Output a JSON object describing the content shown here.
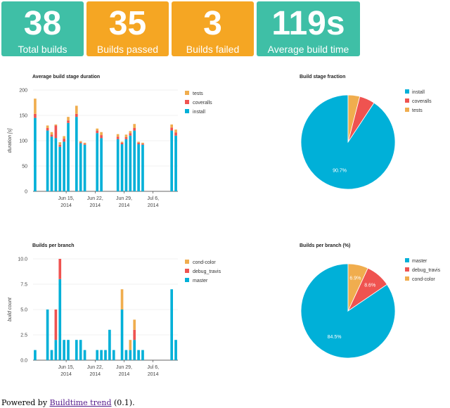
{
  "tiles": [
    {
      "value": "38",
      "label": "Total builds",
      "color": "#3fbfa6"
    },
    {
      "value": "35",
      "label": "Builds passed",
      "color": "#f5a623"
    },
    {
      "value": "3",
      "label": "Builds failed",
      "color": "#f5a623"
    },
    {
      "value": "119s",
      "label": "Average build time",
      "color": "#3fbfa6"
    }
  ],
  "footer": {
    "prefix": "Powered by ",
    "link_text": "Buildtime trend",
    "suffix": " (0.1)."
  },
  "chart_data": [
    {
      "id": "stage-duration",
      "type": "bar",
      "title": "Average build stage duration",
      "ylabel": "duration [s]",
      "xlabel": "",
      "ylim": [
        0,
        200
      ],
      "yticks": [
        "0",
        "50",
        "100",
        "150",
        "200"
      ],
      "stacked": true,
      "num_days": 35,
      "xtick_labels": [
        {
          "day": 8.5,
          "line1": "Jun 15,",
          "line2": "2014"
        },
        {
          "day": 15.5,
          "line1": "Jun 22,",
          "line2": "2014"
        },
        {
          "day": 22.5,
          "line1": "Jun 29,",
          "line2": "2014"
        },
        {
          "day": 29.5,
          "line1": "Jul 6,",
          "line2": "2014"
        }
      ],
      "legend": [
        "tests",
        "coveralls",
        "install"
      ],
      "colors": {
        "install": "#00b0d8",
        "coveralls": "#ef5350",
        "tests": "#f0ad4e"
      },
      "series": [
        {
          "name": "install",
          "days": [
            1,
            4,
            5,
            6,
            7,
            8,
            9,
            11,
            12,
            13,
            16,
            17,
            21,
            22,
            23,
            24,
            25,
            26,
            27,
            34,
            35
          ],
          "values": [
            145,
            120,
            108,
            105,
            88,
            98,
            135,
            147,
            95,
            92,
            115,
            105,
            103,
            93,
            103,
            110,
            120,
            93,
            92,
            120,
            110
          ]
        },
        {
          "name": "coveralls",
          "days": [
            1,
            4,
            5,
            6,
            7,
            8,
            9,
            11,
            12,
            13,
            16,
            17,
            21,
            22,
            23,
            24,
            25,
            26,
            27,
            34,
            35
          ],
          "values": [
            8,
            5,
            4,
            25,
            4,
            6,
            5,
            6,
            2,
            2,
            5,
            6,
            5,
            3,
            4,
            5,
            5,
            3,
            2,
            6,
            6
          ]
        },
        {
          "name": "tests",
          "days": [
            1,
            4,
            5,
            6,
            7,
            8,
            9,
            11,
            12,
            13,
            16,
            17,
            21,
            22,
            23,
            24,
            25,
            26,
            27,
            34,
            35
          ],
          "values": [
            30,
            5,
            5,
            2,
            5,
            5,
            7,
            16,
            2,
            2,
            4,
            6,
            5,
            2,
            5,
            4,
            8,
            2,
            2,
            6,
            6
          ]
        }
      ]
    },
    {
      "id": "stage-fraction",
      "type": "pie",
      "title": "Build stage fraction",
      "legend": [
        "install",
        "coveralls",
        "tests"
      ],
      "slices": [
        {
          "label": "install",
          "value": 90.7,
          "text": "90.7%",
          "color": "#00b0d8"
        },
        {
          "label": "coveralls",
          "value": 5.3,
          "text": "",
          "color": "#ef5350"
        },
        {
          "label": "tests",
          "value": 4.0,
          "text": "",
          "color": "#f0ad4e"
        }
      ]
    },
    {
      "id": "builds-per-branch",
      "type": "bar",
      "title": "Builds per branch",
      "ylabel": "build count",
      "xlabel": "",
      "ylim": [
        0,
        10
      ],
      "yticks": [
        "0.0",
        "2.5",
        "5.0",
        "7.5",
        "10.0"
      ],
      "stacked": true,
      "num_days": 35,
      "xtick_labels": [
        {
          "day": 8.5,
          "line1": "Jun 15,",
          "line2": "2014"
        },
        {
          "day": 15.5,
          "line1": "Jun 22,",
          "line2": "2014"
        },
        {
          "day": 22.5,
          "line1": "Jun 29,",
          "line2": "2014"
        },
        {
          "day": 29.5,
          "line1": "Jul 6,",
          "line2": "2014"
        }
      ],
      "legend": [
        "cond-color",
        "debug_travis",
        "master"
      ],
      "colors": {
        "master": "#00b0d8",
        "debug_travis": "#ef5350",
        "cond-color": "#f0ad4e"
      },
      "series": [
        {
          "name": "master",
          "days": [
            1,
            4,
            5,
            6,
            7,
            8,
            9,
            11,
            12,
            13,
            16,
            17,
            18,
            19,
            20,
            22,
            23,
            24,
            25,
            26,
            27,
            34,
            35
          ],
          "values": [
            1,
            5,
            1,
            2,
            8,
            2,
            2,
            2,
            2,
            1,
            1,
            1,
            1,
            3,
            1,
            5,
            1,
            1,
            2,
            1,
            1,
            7,
            2
          ]
        },
        {
          "name": "debug_travis",
          "days": [
            6,
            7,
            25
          ],
          "values": [
            3,
            2,
            1
          ]
        },
        {
          "name": "cond-color",
          "days": [
            22,
            24,
            25
          ],
          "values": [
            2,
            1,
            1
          ]
        }
      ]
    },
    {
      "id": "branch-fraction",
      "type": "pie",
      "title": "Builds per branch (%)",
      "legend": [
        "master",
        "debug_travis",
        "cond-color"
      ],
      "slices": [
        {
          "label": "master",
          "value": 84.5,
          "text": "84.5%",
          "color": "#00b0d8"
        },
        {
          "label": "debug_travis",
          "value": 8.6,
          "text": "8.6%",
          "color": "#ef5350"
        },
        {
          "label": "cond-color",
          "value": 6.9,
          "text": "6.9%",
          "color": "#f0ad4e"
        }
      ]
    }
  ]
}
